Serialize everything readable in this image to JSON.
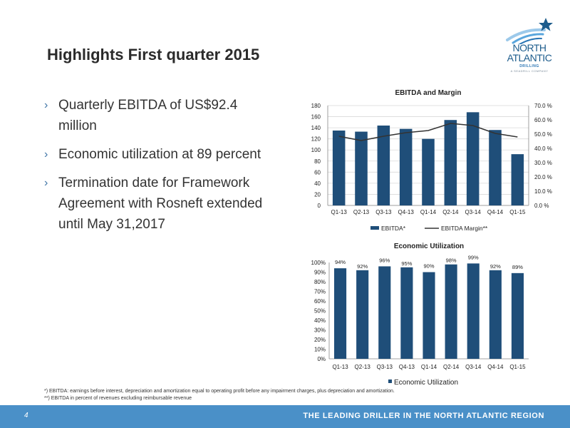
{
  "slide": {
    "title": "Highlights First quarter 2015",
    "page_number": "4",
    "tagline": "THE LEADING DRILLER IN THE NORTH ATLANTIC REGION"
  },
  "logo": {
    "line1": "NORTH",
    "line2": "ATLANTIC",
    "line3": "DRILLING",
    "line4": "A SEADRILL COMPANY"
  },
  "bullets": [
    {
      "text": "Quarterly EBITDA of US$92.4 million"
    },
    {
      "text": "Economic utilization at 89 percent"
    },
    {
      "text": "Termination date for Framework Agreement with Rosneft extended until May 31,2017"
    }
  ],
  "bullet_marker": "›",
  "footnotes": {
    "line1": "*) EBITDA: earnings before interest, depreciation and amortization equal to operating profit before any impairment charges, plus depreciation and amortization.",
    "line2": "**) EBITDA in percent of revenues excluding reimbursable revenue"
  },
  "colors": {
    "bar": "#1f4e79",
    "line": "#333333",
    "grid": "#d9d9d9",
    "footer": "#4a90c8",
    "logo": "#1d5c8c"
  },
  "chart_data": [
    {
      "type": "bar",
      "title": "EBITDA and Margin",
      "categories": [
        "Q1-13",
        "Q2-13",
        "Q3-13",
        "Q4-13",
        "Q1-14",
        "Q2-14",
        "Q3-14",
        "Q4-14",
        "Q1-15"
      ],
      "series": [
        {
          "name": "EBITDA*",
          "type": "bar",
          "axis": "left",
          "values": [
            135,
            133,
            144,
            138,
            120,
            154,
            168,
            136,
            92.4
          ]
        },
        {
          "name": "EBITDA Margin**",
          "type": "line",
          "axis": "right",
          "values": [
            48.5,
            45.5,
            48.5,
            51.0,
            52.5,
            57.5,
            56.0,
            50.5,
            48.0
          ]
        }
      ],
      "ylim_left": [
        0,
        180
      ],
      "yticks_left": [
        "0",
        "20",
        "40",
        "60",
        "80",
        "100",
        "120",
        "140",
        "160",
        "180"
      ],
      "ylim_right": [
        0,
        70
      ],
      "yticks_right": [
        "0.0 %",
        "10.0 %",
        "20.0 %",
        "30.0 %",
        "40.0 %",
        "50.0 %",
        "60.0 %",
        "70.0 %"
      ],
      "grid": true,
      "legend": "bottom"
    },
    {
      "type": "bar",
      "title": "Economic Utilization",
      "categories": [
        "Q1-13",
        "Q2-13",
        "Q3-13",
        "Q4-13",
        "Q1-14",
        "Q2-14",
        "Q3-14",
        "Q4-14",
        "Q1-15"
      ],
      "series": [
        {
          "name": "Economic Utilization",
          "values": [
            94,
            92,
            96,
            95,
            90,
            98,
            99,
            92,
            89
          ]
        }
      ],
      "data_labels": [
        "94%",
        "92%",
        "96%",
        "95%",
        "90%",
        "98%",
        "99%",
        "92%",
        "89%"
      ],
      "ylim": [
        0,
        100
      ],
      "yticks": [
        "0%",
        "10%",
        "20%",
        "30%",
        "40%",
        "50%",
        "60%",
        "70%",
        "80%",
        "90%",
        "100%"
      ],
      "grid": false,
      "legend": "bottom"
    }
  ]
}
